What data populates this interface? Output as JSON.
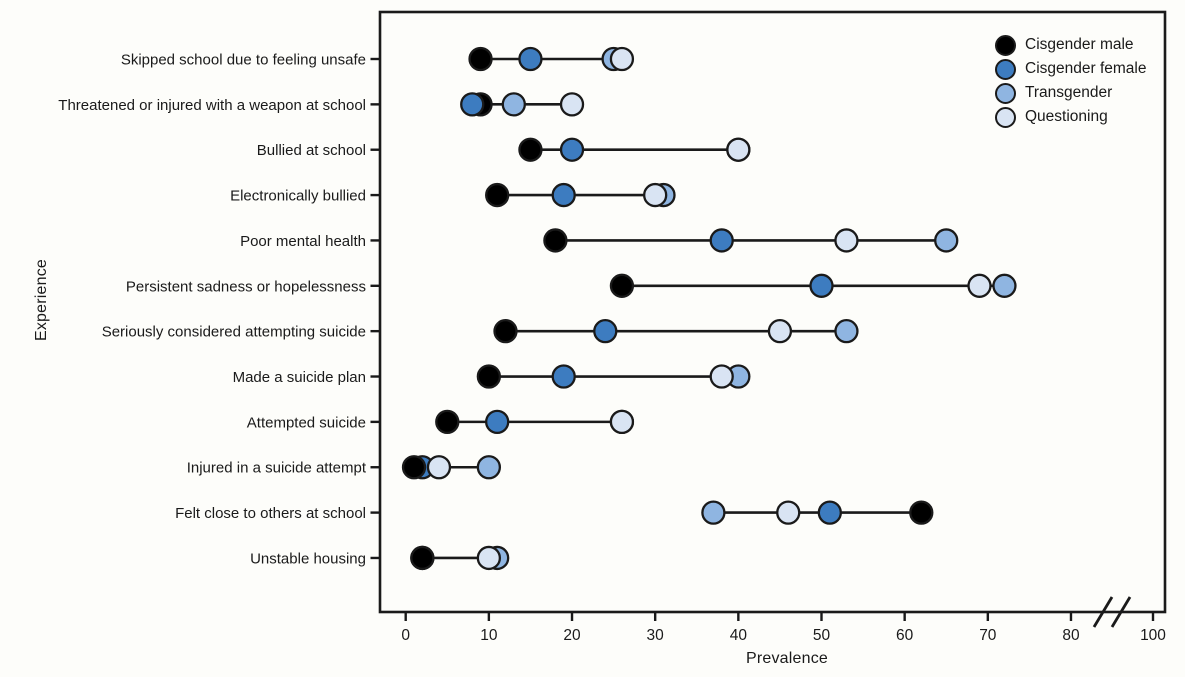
{
  "chart_data": {
    "type": "dumbbell",
    "title": "",
    "xlabel": "Prevalence",
    "ylabel": "Experience",
    "xlim": [
      0,
      100
    ],
    "x_ticks": [
      0,
      10,
      20,
      30,
      40,
      50,
      60,
      70,
      80,
      100
    ],
    "axis_break": {
      "between": [
        80,
        100
      ]
    },
    "grid": false,
    "legend_position": "top-right-inside",
    "point_outline_color": "#1a1a1a",
    "connector_color": "#1a1a1a",
    "legend": [
      {
        "label": "Cisgender male",
        "color": "#000000"
      },
      {
        "label": "Cisgender female",
        "color": "#3d7cc0"
      },
      {
        "label": "Transgender",
        "color": "#8fb5e1"
      },
      {
        "label": "Questioning",
        "color": "#d9e4f3"
      }
    ],
    "categories": [
      "Skipped school due to feeling unsafe",
      "Threatened or injured with a weapon at school",
      "Bullied at school",
      "Electronically bullied",
      "Poor mental health",
      "Persistent sadness or hopelessness",
      "Seriously considered attempting suicide",
      "Made a suicide plan",
      "Attempted suicide",
      "Injured in a suicide attempt",
      "Felt close to others at school",
      "Unstable housing"
    ],
    "rows": [
      {
        "category": "Skipped school due to feeling unsafe",
        "values": {
          "Cisgender male": 9,
          "Cisgender female": 15,
          "Transgender": 25,
          "Questioning": 26
        },
        "draw_order": [
          "Cisgender male",
          "Cisgender female",
          "Transgender",
          "Questioning"
        ]
      },
      {
        "category": "Threatened or injured with a weapon at school",
        "values": {
          "Cisgender male": 9,
          "Cisgender female": 8,
          "Transgender": 13,
          "Questioning": 20
        },
        "draw_order": [
          "Cisgender male",
          "Cisgender female",
          "Transgender",
          "Questioning"
        ]
      },
      {
        "category": "Bullied at school",
        "values": {
          "Cisgender male": 15,
          "Cisgender female": 20,
          "Transgender": 40,
          "Questioning": 40
        },
        "draw_order": [
          "Cisgender male",
          "Cisgender female",
          "Transgender",
          "Questioning"
        ]
      },
      {
        "category": "Electronically bullied",
        "values": {
          "Cisgender male": 11,
          "Cisgender female": 19,
          "Transgender": 31,
          "Questioning": 30
        },
        "draw_order": [
          "Cisgender male",
          "Cisgender female",
          "Transgender",
          "Questioning"
        ]
      },
      {
        "category": "Poor mental health",
        "values": {
          "Cisgender male": 18,
          "Cisgender female": 38,
          "Transgender": 65,
          "Questioning": 53
        },
        "draw_order": [
          "Cisgender male",
          "Cisgender female",
          "Questioning",
          "Transgender"
        ]
      },
      {
        "category": "Persistent sadness or hopelessness",
        "values": {
          "Cisgender male": 26,
          "Cisgender female": 50,
          "Transgender": 72,
          "Questioning": 69
        },
        "draw_order": [
          "Cisgender male",
          "Cisgender female",
          "Questioning",
          "Transgender"
        ]
      },
      {
        "category": "Seriously considered attempting suicide",
        "values": {
          "Cisgender male": 12,
          "Cisgender female": 24,
          "Transgender": 53,
          "Questioning": 45
        },
        "draw_order": [
          "Cisgender male",
          "Cisgender female",
          "Questioning",
          "Transgender"
        ]
      },
      {
        "category": "Made a suicide plan",
        "values": {
          "Cisgender male": 10,
          "Cisgender female": 19,
          "Transgender": 40,
          "Questioning": 38
        },
        "draw_order": [
          "Cisgender male",
          "Cisgender female",
          "Transgender",
          "Questioning"
        ]
      },
      {
        "category": "Attempted suicide",
        "values": {
          "Cisgender male": 5,
          "Cisgender female": 11,
          "Transgender": 26,
          "Questioning": 26
        },
        "draw_order": [
          "Cisgender male",
          "Cisgender female",
          "Transgender",
          "Questioning"
        ]
      },
      {
        "category": "Injured in a suicide attempt",
        "values": {
          "Cisgender male": 1,
          "Cisgender female": 2,
          "Transgender": 10,
          "Questioning": 4
        },
        "draw_order": [
          "Cisgender female",
          "Cisgender male",
          "Transgender",
          "Questioning"
        ]
      },
      {
        "category": "Felt close to others at school",
        "values": {
          "Cisgender male": 62,
          "Cisgender female": 51,
          "Transgender": 37,
          "Questioning": 46
        },
        "draw_order": [
          "Transgender",
          "Questioning",
          "Cisgender female",
          "Cisgender male"
        ]
      },
      {
        "category": "Unstable housing",
        "values": {
          "Cisgender male": 2,
          "Cisgender female": 2,
          "Transgender": 11,
          "Questioning": 10
        },
        "draw_order": [
          "Cisgender female",
          "Cisgender male",
          "Transgender",
          "Questioning"
        ]
      }
    ]
  }
}
